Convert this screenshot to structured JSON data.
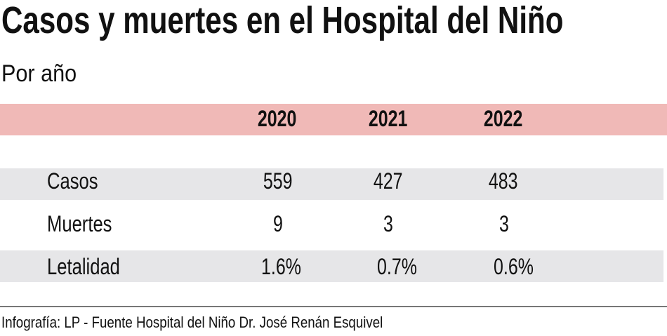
{
  "title": "Casos  y muertes  en el Hospital del Niño",
  "subtitle": "Por año",
  "colors": {
    "header_band": "#f0b9b7",
    "row_band": "#e6e6e8"
  },
  "chart_data": {
    "type": "table",
    "columns": [
      "2020",
      "2021",
      "2022"
    ],
    "rows": [
      {
        "label": "Casos",
        "values": [
          "559",
          "427",
          "483"
        ]
      },
      {
        "label": "Muertes",
        "values": [
          "9",
          "3",
          "3"
        ]
      },
      {
        "label": "Letalidad",
        "values": [
          "1.6%",
          "0.7%",
          "0.6%"
        ]
      }
    ]
  },
  "footer": "Infografía: LP - Fuente Hospital del Niño Dr. José Renán Esquivel"
}
